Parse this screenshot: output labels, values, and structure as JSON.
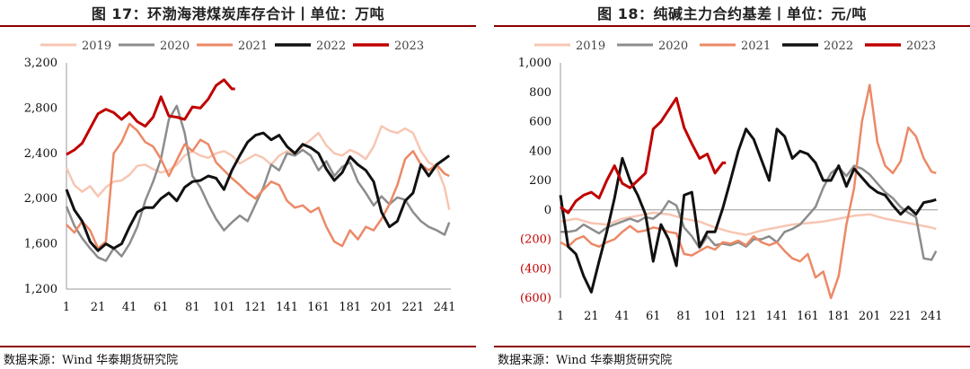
{
  "charts": [
    {
      "title": "图 17：环渤海港煤炭库存合计丨单位：万吨",
      "source": "数据来源：Wind 华泰期货研究院"
    },
    {
      "title": "图 18：纯碱主力合约基差丨单位：元/吨",
      "source": "数据来源：Wind 华泰期货研究院"
    }
  ],
  "chart_data": [
    {
      "type": "line",
      "title": "图 17：环渤海港煤炭库存合计丨单位：万吨",
      "ylim": [
        1200,
        3200
      ],
      "yticks": [
        "1,200",
        "1,600",
        "2,000",
        "2,400",
        "2,800",
        "3,200"
      ],
      "xlim": [
        1,
        245
      ],
      "xticks": [
        1,
        21,
        41,
        61,
        81,
        101,
        121,
        141,
        161,
        181,
        201,
        221,
        241
      ],
      "legend_position": "top",
      "series": [
        {
          "name": "2019",
          "color": "#f7c6b3",
          "width": 2.5,
          "x": [
            1,
            6,
            11,
            16,
            21,
            26,
            31,
            36,
            41,
            46,
            51,
            56,
            61,
            66,
            71,
            76,
            81,
            86,
            91,
            96,
            101,
            106,
            111,
            116,
            121,
            126,
            131,
            136,
            141,
            146,
            151,
            156,
            161,
            166,
            171,
            176,
            181,
            186,
            191,
            196,
            201,
            206,
            211,
            216,
            221,
            226,
            231,
            236,
            241,
            244
          ],
          "y": [
            2270,
            2120,
            2060,
            2110,
            2020,
            2100,
            2150,
            2160,
            2210,
            2290,
            2300,
            2260,
            2230,
            2250,
            2300,
            2380,
            2420,
            2380,
            2360,
            2400,
            2420,
            2380,
            2310,
            2350,
            2390,
            2360,
            2300,
            2380,
            2420,
            2400,
            2460,
            2520,
            2580,
            2470,
            2400,
            2380,
            2430,
            2400,
            2350,
            2460,
            2640,
            2600,
            2580,
            2620,
            2580,
            2420,
            2320,
            2280,
            2100,
            1900
          ]
        },
        {
          "name": "2020",
          "color": "#8c8c8c",
          "width": 2.5,
          "x": [
            1,
            6,
            11,
            16,
            21,
            26,
            31,
            36,
            41,
            46,
            51,
            56,
            61,
            66,
            71,
            76,
            81,
            86,
            91,
            96,
            101,
            106,
            111,
            116,
            121,
            126,
            131,
            136,
            141,
            146,
            151,
            156,
            161,
            166,
            171,
            176,
            181,
            186,
            191,
            196,
            201,
            206,
            211,
            216,
            221,
            226,
            231,
            236,
            241,
            244
          ],
          "y": [
            1930,
            1760,
            1650,
            1560,
            1480,
            1450,
            1560,
            1490,
            1600,
            1750,
            1980,
            2150,
            2350,
            2700,
            2820,
            2580,
            2200,
            2100,
            1950,
            1820,
            1720,
            1790,
            1850,
            1800,
            1950,
            2100,
            2300,
            2250,
            2400,
            2380,
            2430,
            2380,
            2250,
            2330,
            2200,
            2280,
            2320,
            2150,
            2050,
            1940,
            2020,
            1950,
            2010,
            1990,
            1880,
            1800,
            1750,
            1720,
            1680,
            1790
          ]
        },
        {
          "name": "2021",
          "color": "#ec8966",
          "width": 2.5,
          "x": [
            1,
            6,
            11,
            16,
            21,
            26,
            31,
            36,
            41,
            46,
            51,
            56,
            61,
            66,
            71,
            76,
            81,
            86,
            91,
            96,
            101,
            106,
            111,
            116,
            121,
            126,
            131,
            136,
            141,
            146,
            151,
            156,
            161,
            166,
            171,
            176,
            181,
            186,
            191,
            196,
            201,
            206,
            211,
            216,
            221,
            226,
            231,
            236,
            241,
            244
          ],
          "y": [
            1770,
            1700,
            1800,
            1720,
            1560,
            1620,
            2400,
            2500,
            2660,
            2600,
            2500,
            2460,
            2350,
            2200,
            2340,
            2480,
            2420,
            2520,
            2480,
            2320,
            2250,
            2180,
            2120,
            2050,
            2000,
            2080,
            2150,
            2120,
            1980,
            1920,
            1940,
            1880,
            1920,
            1750,
            1620,
            1580,
            1720,
            1640,
            1750,
            1720,
            1820,
            1950,
            2120,
            2350,
            2420,
            2300,
            2250,
            2300,
            2220,
            2200
          ]
        },
        {
          "name": "2022",
          "color": "#111111",
          "width": 3,
          "x": [
            1,
            6,
            11,
            16,
            21,
            26,
            31,
            36,
            41,
            46,
            51,
            56,
            61,
            66,
            71,
            76,
            81,
            86,
            91,
            96,
            101,
            106,
            111,
            116,
            121,
            126,
            131,
            136,
            141,
            146,
            151,
            156,
            161,
            166,
            171,
            176,
            181,
            186,
            191,
            196,
            201,
            206,
            211,
            216,
            221,
            226,
            231,
            236,
            241,
            244
          ],
          "y": [
            2080,
            1900,
            1800,
            1620,
            1540,
            1600,
            1560,
            1600,
            1750,
            1880,
            1920,
            1920,
            2000,
            2050,
            1980,
            2100,
            2150,
            2160,
            2200,
            2180,
            2080,
            2250,
            2380,
            2500,
            2560,
            2580,
            2520,
            2560,
            2460,
            2400,
            2480,
            2450,
            2400,
            2260,
            2160,
            2230,
            2370,
            2300,
            2250,
            2150,
            1880,
            1750,
            1800,
            1980,
            2050,
            2300,
            2200,
            2300,
            2350,
            2380
          ]
        },
        {
          "name": "2023",
          "color": "#c00000",
          "width": 3,
          "x": [
            1,
            6,
            11,
            16,
            21,
            26,
            31,
            36,
            41,
            46,
            51,
            56,
            61,
            66,
            71,
            76,
            81,
            86,
            91,
            96,
            101,
            106,
            108
          ],
          "y": [
            2390,
            2430,
            2490,
            2620,
            2750,
            2790,
            2760,
            2700,
            2760,
            2680,
            2640,
            2720,
            2900,
            2730,
            2720,
            2700,
            2810,
            2800,
            2880,
            3000,
            3050,
            2970,
            2970
          ]
        }
      ]
    },
    {
      "type": "line",
      "title": "图 18：纯碱主力合约基差丨单位：元/吨",
      "ylim": [
        -600,
        1000
      ],
      "yticks": [
        "(600)",
        "(400)",
        "(200)",
        "0",
        "200",
        "400",
        "600",
        "800",
        "1,000"
      ],
      "xlim": [
        1,
        245
      ],
      "xticks": [
        1,
        21,
        41,
        61,
        81,
        101,
        121,
        141,
        161,
        181,
        201,
        221,
        241
      ],
      "legend_position": "top",
      "series": [
        {
          "name": "2019",
          "color": "#f7c6b3",
          "width": 2.5,
          "x": [
            1,
            11,
            21,
            31,
            41,
            51,
            61,
            71,
            81,
            91,
            101,
            111,
            121,
            131,
            141,
            151,
            161,
            171,
            181,
            191,
            201,
            211,
            221,
            231,
            241,
            244
          ],
          "y": [
            -80,
            -60,
            -90,
            -100,
            -60,
            -40,
            -20,
            -30,
            -60,
            -80,
            -120,
            -150,
            -170,
            -140,
            -120,
            -100,
            -90,
            -80,
            -60,
            -40,
            -30,
            -60,
            -80,
            -100,
            -120,
            -130
          ]
        },
        {
          "name": "2020",
          "color": "#8c8c8c",
          "width": 2.5,
          "x": [
            1,
            6,
            11,
            16,
            21,
            26,
            31,
            36,
            41,
            46,
            51,
            56,
            61,
            66,
            71,
            76,
            81,
            86,
            91,
            96,
            101,
            106,
            111,
            116,
            121,
            126,
            131,
            136,
            141,
            146,
            151,
            156,
            161,
            166,
            171,
            176,
            181,
            186,
            191,
            196,
            201,
            206,
            211,
            216,
            221,
            226,
            231,
            236,
            241,
            244
          ],
          "y": [
            -150,
            -150,
            -140,
            -100,
            -130,
            -160,
            -120,
            -100,
            -80,
            -60,
            -80,
            -50,
            -60,
            -20,
            60,
            30,
            -120,
            -180,
            -260,
            -180,
            -240,
            -230,
            -240,
            -220,
            -250,
            -200,
            -200,
            -180,
            -220,
            -150,
            -130,
            -100,
            -40,
            20,
            150,
            250,
            290,
            230,
            300,
            280,
            240,
            180,
            120,
            80,
            20,
            -20,
            -50,
            -330,
            -340,
            -280
          ]
        },
        {
          "name": "2021",
          "color": "#ec8966",
          "width": 2.5,
          "x": [
            1,
            6,
            11,
            16,
            21,
            26,
            31,
            36,
            41,
            46,
            51,
            56,
            61,
            66,
            71,
            76,
            81,
            86,
            91,
            96,
            101,
            106,
            111,
            116,
            121,
            126,
            131,
            136,
            141,
            146,
            151,
            156,
            161,
            166,
            171,
            176,
            181,
            186,
            191,
            196,
            201,
            206,
            211,
            216,
            221,
            226,
            231,
            236,
            241,
            244
          ],
          "y": [
            -220,
            -250,
            -200,
            -180,
            -230,
            -250,
            -220,
            -200,
            -150,
            -110,
            -150,
            -140,
            -120,
            -130,
            -150,
            -160,
            -300,
            -310,
            -280,
            -250,
            -270,
            -220,
            -230,
            -210,
            -240,
            -180,
            -220,
            -240,
            -220,
            -280,
            -330,
            -350,
            -300,
            -460,
            -420,
            -600,
            -450,
            -100,
            150,
            600,
            850,
            460,
            300,
            250,
            330,
            560,
            500,
            350,
            260,
            250
          ]
        },
        {
          "name": "2022",
          "color": "#111111",
          "width": 3,
          "x": [
            1,
            6,
            11,
            16,
            21,
            26,
            31,
            36,
            41,
            46,
            51,
            56,
            61,
            66,
            71,
            76,
            81,
            86,
            91,
            96,
            101,
            106,
            111,
            116,
            121,
            126,
            131,
            136,
            141,
            146,
            151,
            156,
            161,
            166,
            171,
            176,
            181,
            186,
            191,
            196,
            201,
            206,
            211,
            216,
            221,
            226,
            231,
            236,
            241,
            244
          ],
          "y": [
            100,
            -250,
            -300,
            -450,
            -560,
            -350,
            -150,
            80,
            350,
            200,
            100,
            -30,
            -350,
            -100,
            -200,
            -380,
            100,
            120,
            -250,
            -150,
            -150,
            10,
            200,
            400,
            550,
            480,
            340,
            200,
            550,
            500,
            350,
            400,
            380,
            320,
            200,
            200,
            300,
            160,
            280,
            220,
            160,
            120,
            100,
            30,
            -30,
            20,
            -30,
            50,
            60,
            70
          ]
        },
        {
          "name": "2023",
          "color": "#c00000",
          "width": 3,
          "x": [
            1,
            6,
            11,
            16,
            21,
            26,
            31,
            36,
            41,
            46,
            51,
            56,
            61,
            66,
            71,
            76,
            81,
            86,
            91,
            96,
            101,
            106,
            108
          ],
          "y": [
            20,
            -20,
            60,
            100,
            120,
            80,
            200,
            300,
            180,
            150,
            200,
            250,
            550,
            600,
            680,
            760,
            560,
            450,
            350,
            380,
            250,
            320,
            320
          ]
        }
      ]
    }
  ]
}
